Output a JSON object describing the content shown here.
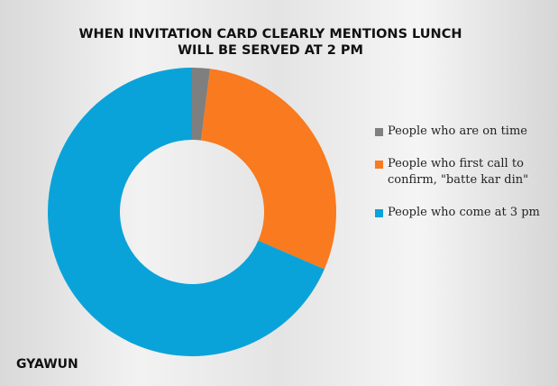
{
  "chart_data": {
    "type": "donut",
    "title": [
      "WHEN INVITATION CARD CLEARLY MENTIONS LUNCH",
      "WILL BE SERVED AT 2 PM"
    ],
    "categories": [
      "People who are on time",
      "People who first call to confirm, \"batte kar din\"",
      "People who come at 3 pm"
    ],
    "values": [
      2,
      29.5,
      68.5
    ],
    "colors": [
      "#7f7f7f",
      "#f97a1f",
      "#0aa3d9"
    ]
  },
  "watermark": "GYAWUN"
}
